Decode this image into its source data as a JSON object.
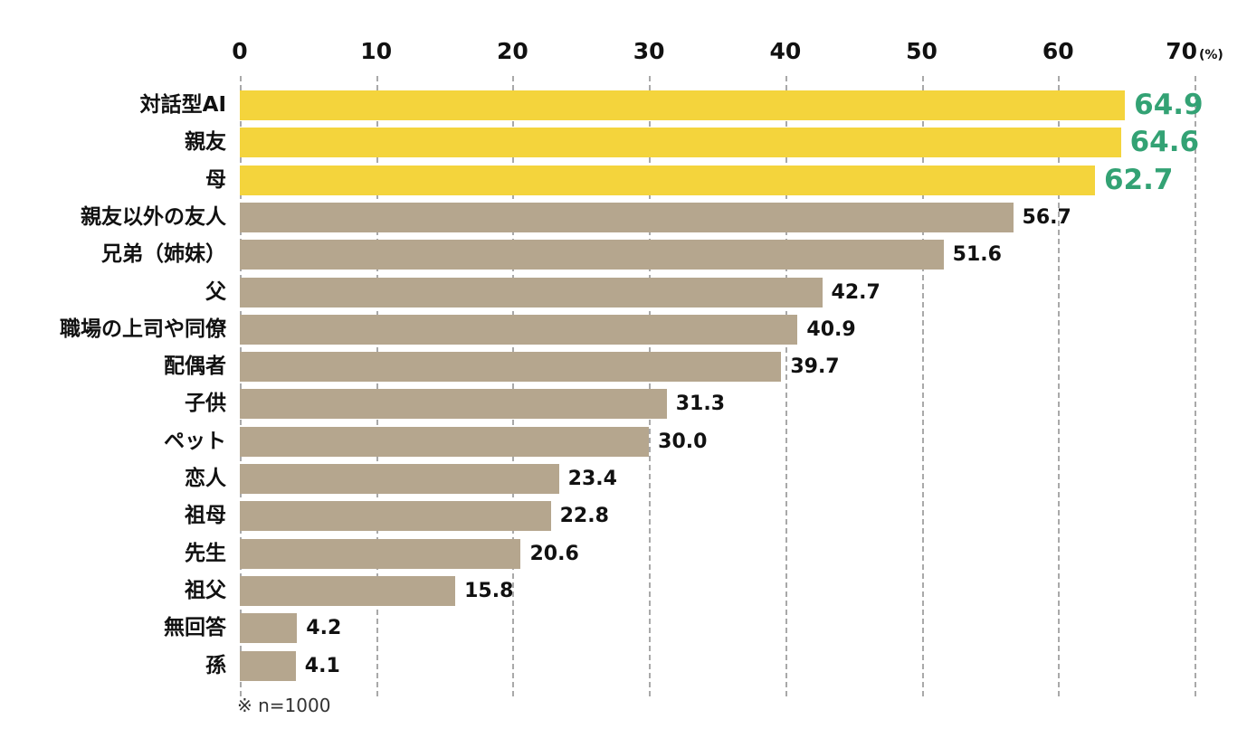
{
  "chart_data": {
    "type": "bar",
    "orientation": "horizontal",
    "title": "",
    "categories": [
      "対話型AI",
      "親友",
      "母",
      "親友以外の友人",
      "兄弟（姉妹）",
      "父",
      "職場の上司や同僚",
      "配偶者",
      "子供",
      "ペット",
      "恋人",
      "祖母",
      "先生",
      "祖父",
      "無回答",
      "孫"
    ],
    "values": [
      64.9,
      64.6,
      62.7,
      56.7,
      51.6,
      42.7,
      40.9,
      39.7,
      31.3,
      30.0,
      23.4,
      22.8,
      20.6,
      15.8,
      4.2,
      4.1
    ],
    "value_labels": [
      "64.9",
      "64.6",
      "62.7",
      "56.7",
      "51.6",
      "42.7",
      "40.9",
      "39.7",
      "31.3",
      "30.0",
      "23.4",
      "22.8",
      "20.6",
      "15.8",
      "4.2",
      "4.1"
    ],
    "highlighted": [
      true,
      true,
      true,
      false,
      false,
      false,
      false,
      false,
      false,
      false,
      false,
      false,
      false,
      false,
      false,
      false
    ],
    "x_ticks": [
      0,
      10,
      20,
      30,
      40,
      50,
      60,
      70
    ],
    "x_tick_labels": [
      "0",
      "10",
      "20",
      "30",
      "40",
      "50",
      "60",
      "70"
    ],
    "x_unit": "(%)",
    "xlim": [
      0,
      70
    ],
    "grid": "dashed-vertical",
    "legend": "none",
    "footnote": "※ n=1000",
    "colors": {
      "highlight_bar": "#F4D43C",
      "normal_bar": "#B5A68E",
      "highlight_value": "#33A274",
      "normal_value": "#111111",
      "axis_text": "#111111",
      "gridline": "#A9A9A9"
    }
  }
}
